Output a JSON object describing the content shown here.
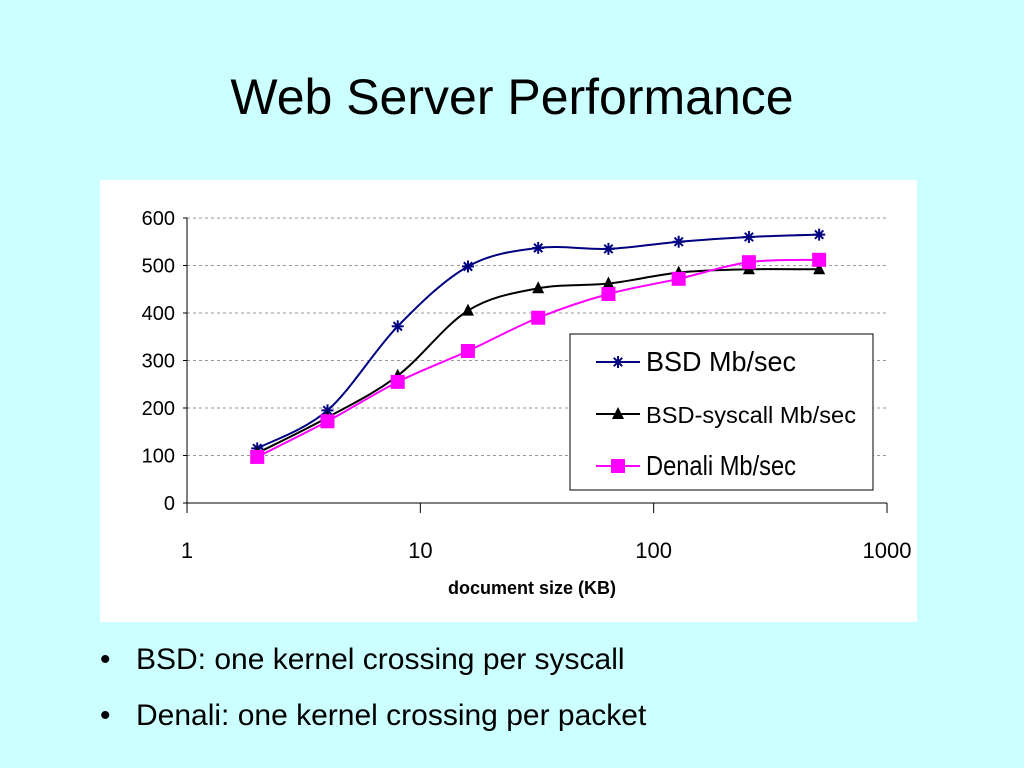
{
  "slide": {
    "title": "Web Server Performance",
    "bullets": [
      "BSD: one kernel crossing per syscall",
      "Denali: one kernel crossing per packet"
    ]
  },
  "chart_data": {
    "type": "line",
    "title": "",
    "xlabel": "document size (KB)",
    "ylabel": "",
    "xscale": "log",
    "xlim": [
      1,
      1000
    ],
    "ylim": [
      0,
      600
    ],
    "xticks": [
      "1",
      "10",
      "100",
      "1000"
    ],
    "yticks": [
      "0",
      "100",
      "200",
      "300",
      "400",
      "500",
      "600"
    ],
    "grid": "horizontal dashed",
    "legend_position": "right, inside plot",
    "x": [
      2,
      4,
      8,
      16,
      32,
      64,
      128,
      256,
      512
    ],
    "series": [
      {
        "name": "BSD Mb/sec",
        "color": "#000080",
        "marker": "asterisk",
        "values": [
          115,
          195,
          372,
          498,
          537,
          535,
          550,
          560,
          565
        ]
      },
      {
        "name": "BSD-syscall Mb/sec",
        "color": "#000000",
        "marker": "triangle",
        "values": [
          105,
          180,
          268,
          405,
          452,
          462,
          485,
          492,
          492
        ]
      },
      {
        "name": "Denali Mb/sec",
        "color": "#ff00ff",
        "marker": "square",
        "values": [
          97,
          172,
          255,
          320,
          390,
          440,
          472,
          507,
          512
        ]
      }
    ]
  }
}
